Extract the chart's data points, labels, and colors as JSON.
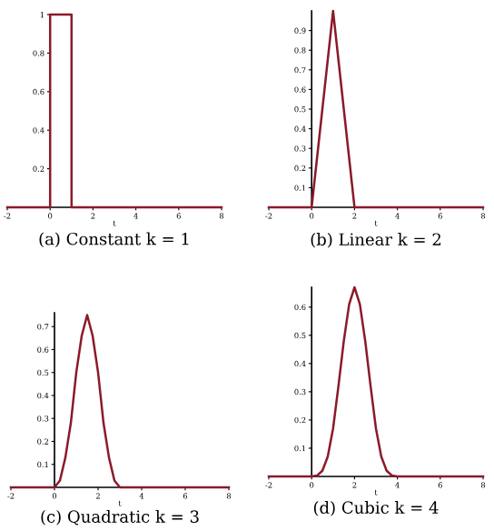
{
  "chart_data": [
    {
      "type": "line",
      "title": "(a) Constant k = 1",
      "xlabel": "t",
      "x": [
        -2,
        0,
        0,
        1,
        1,
        8
      ],
      "series": [
        {
          "color": "#8b1a2a",
          "values": [
            0,
            0,
            1,
            1,
            0,
            0
          ]
        }
      ],
      "xlim": [
        -2,
        8
      ],
      "xticks": [
        -2,
        0,
        2,
        4,
        6,
        8
      ],
      "ylim": [
        0,
        1
      ],
      "yticks": [
        0.2,
        0.4,
        0.6,
        0.8,
        1
      ],
      "grid": false
    },
    {
      "type": "line",
      "title": "(b) Linear k = 2",
      "xlabel": "t",
      "x": [
        -2,
        0,
        1,
        2,
        8
      ],
      "series": [
        {
          "color": "#8b1a2a",
          "values": [
            0,
            0,
            1,
            0,
            0
          ]
        }
      ],
      "xlim": [
        -2,
        8
      ],
      "xticks": [
        -2,
        0,
        2,
        4,
        6,
        8
      ],
      "ylim": [
        0,
        1
      ],
      "yticks": [
        0.1,
        0.2,
        0.3,
        0.4,
        0.5,
        0.6,
        0.7,
        0.8,
        0.9
      ],
      "grid": false
    },
    {
      "type": "line",
      "title": "(c) Quadratic k = 3",
      "xlabel": "t",
      "x": [
        -2,
        0,
        0.25,
        0.5,
        0.75,
        1,
        1.25,
        1.5,
        1.75,
        2,
        2.25,
        2.5,
        2.75,
        3,
        8
      ],
      "series": [
        {
          "color": "#8b1a2a",
          "values": [
            0,
            0,
            0.03,
            0.13,
            0.28,
            0.5,
            0.66,
            0.75,
            0.66,
            0.5,
            0.28,
            0.13,
            0.03,
            0,
            0
          ]
        }
      ],
      "xlim": [
        -2,
        8
      ],
      "xticks": [
        -2,
        0,
        2,
        4,
        6,
        8
      ],
      "ylim": [
        0,
        0.76
      ],
      "yticks": [
        0.1,
        0.2,
        0.3,
        0.4,
        0.5,
        0.6,
        0.7
      ],
      "grid": false
    },
    {
      "type": "line",
      "title": "(d) Cubic k = 4",
      "xlabel": "t",
      "x": [
        -2,
        0,
        0.25,
        0.5,
        0.75,
        1,
        1.25,
        1.5,
        1.75,
        2,
        2.25,
        2.5,
        2.75,
        3,
        3.25,
        3.5,
        3.75,
        4,
        8
      ],
      "series": [
        {
          "color": "#8b1a2a",
          "values": [
            0,
            0,
            0.003,
            0.02,
            0.07,
            0.17,
            0.32,
            0.48,
            0.61,
            0.67,
            0.61,
            0.48,
            0.32,
            0.17,
            0.07,
            0.02,
            0.003,
            0,
            0
          ]
        }
      ],
      "xlim": [
        -2,
        8
      ],
      "xticks": [
        -2,
        0,
        2,
        4,
        6,
        8
      ],
      "ylim": [
        0,
        0.67
      ],
      "yticks": [
        0.1,
        0.2,
        0.3,
        0.4,
        0.5,
        0.6
      ],
      "grid": false
    }
  ]
}
